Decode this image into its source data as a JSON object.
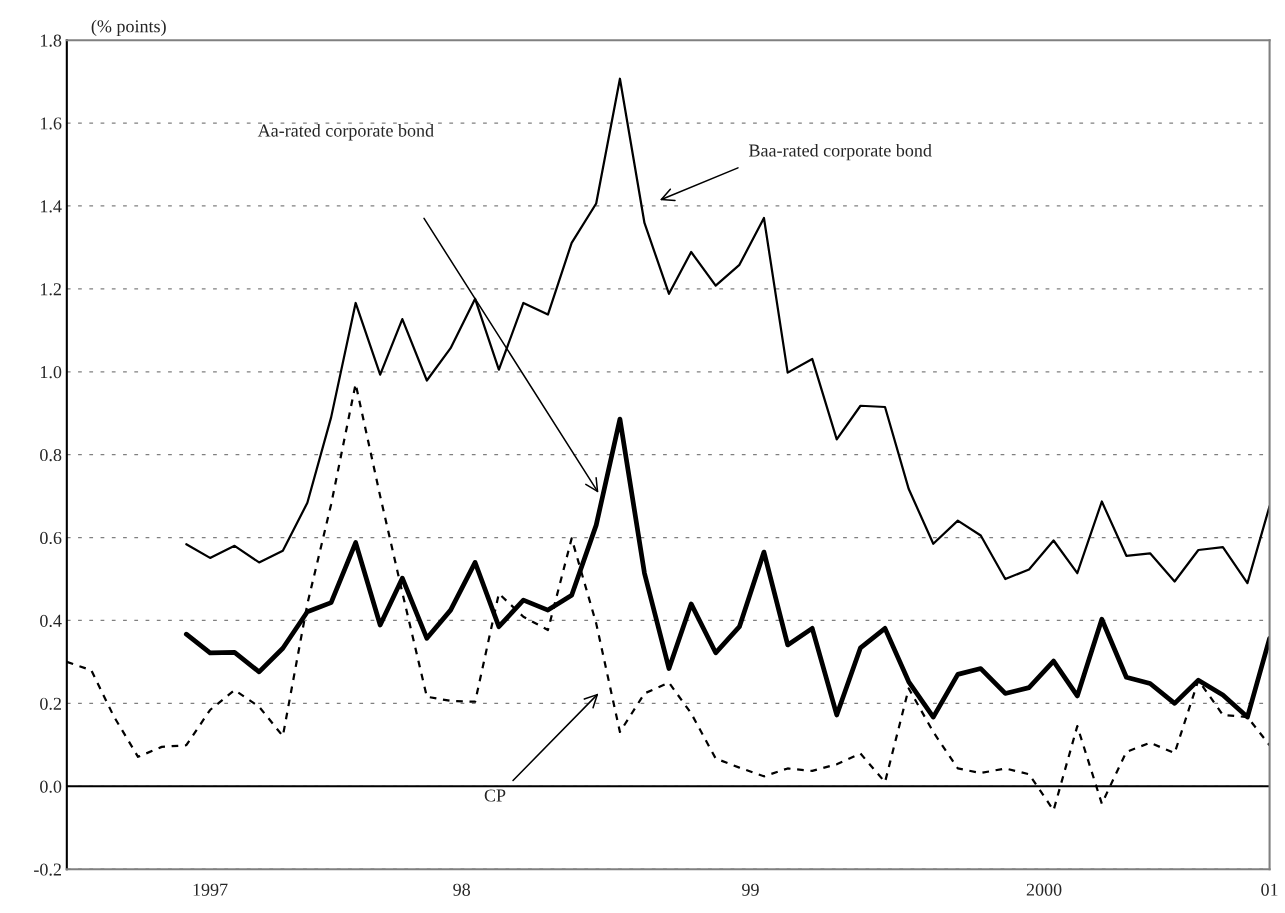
{
  "chart_data": {
    "type": "line",
    "ylabel": "(% points)",
    "x": [
      "1997-01",
      "1997-02",
      "1997-03",
      "1997-04",
      "1997-05",
      "1997-06",
      "1997-07",
      "1997-08",
      "1997-09",
      "1997-10",
      "1997-11",
      "1997-12",
      "1998-01",
      "1998-02",
      "1998-03",
      "1998-04",
      "1998-05",
      "1998-06",
      "1998-07",
      "1998-08",
      "1998-09",
      "1998-10",
      "1998-11",
      "1998-12",
      "1999-01",
      "1999-02",
      "1999-03",
      "1999-04",
      "1999-05",
      "1999-06",
      "1999-07",
      "1999-08",
      "1999-09",
      "1999-10",
      "1999-11",
      "1999-12",
      "2000-01",
      "2000-02",
      "2000-03",
      "2000-04",
      "2000-05",
      "2000-06",
      "2000-07",
      "2000-08",
      "2000-09",
      "2000-10",
      "2000-11",
      "2000-12",
      "2001-01",
      "2001-02",
      "2001-03"
    ],
    "series": [
      {
        "color": "#000000",
        "line_style": "solid",
        "values": [
          null,
          null,
          null,
          null,
          null,
          0.584,
          0.551,
          0.58,
          0.54,
          0.568,
          0.684,
          0.89,
          1.166,
          0.993,
          1.127,
          0.979,
          1.057,
          1.176,
          1.005,
          1.166,
          1.138,
          1.311,
          1.406,
          1.707,
          1.359,
          1.188,
          1.289,
          1.208,
          1.258,
          1.371,
          0.998,
          1.031,
          0.837,
          0.918,
          0.915,
          0.717,
          0.585,
          0.641,
          0.605,
          0.5,
          0.523,
          0.593,
          0.514,
          0.687,
          0.556,
          0.562,
          0.494,
          0.57,
          0.577,
          0.49,
          0.676
        ]
      },
      {
        "color": "#000000",
        "line_style": "solid",
        "values": [
          null,
          null,
          null,
          null,
          null,
          0.367,
          0.322,
          0.323,
          0.276,
          0.333,
          0.421,
          0.443,
          0.588,
          0.389,
          0.502,
          0.357,
          0.425,
          0.54,
          0.385,
          0.449,
          0.425,
          0.461,
          0.63,
          0.886,
          0.514,
          0.284,
          0.44,
          0.322,
          0.385,
          0.565,
          0.341,
          0.381,
          0.172,
          0.334,
          0.381,
          0.252,
          0.167,
          0.27,
          0.284,
          0.224,
          0.238,
          0.302,
          0.218,
          0.403,
          0.263,
          0.248,
          0.2,
          0.256,
          0.22,
          0.167,
          0.357
        ]
      },
      {
        "color": "#000000",
        "line_style": "dashed",
        "values": [
          0.3,
          0.28,
          0.17,
          0.071,
          0.095,
          0.099,
          0.184,
          0.232,
          0.192,
          0.121,
          0.44,
          0.68,
          0.971,
          0.7,
          0.467,
          0.216,
          0.206,
          0.204,
          0.465,
          0.409,
          0.377,
          0.598,
          0.393,
          0.131,
          0.224,
          0.25,
          0.176,
          0.067,
          0.045,
          0.024,
          0.043,
          0.037,
          0.053,
          0.079,
          0.01,
          0.236,
          0.131,
          0.043,
          0.032,
          0.043,
          0.029,
          -0.058,
          0.145,
          -0.042,
          0.083,
          0.105,
          0.08,
          0.256,
          0.172,
          0.167,
          0.099
        ]
      }
    ],
    "xlim": [
      "1997-01",
      "2001-03"
    ],
    "xticks": [
      {
        "value": "1997-07",
        "label": "1997"
      },
      {
        "value": "1998-05-15",
        "label": "98"
      },
      {
        "value": "1999-05-15",
        "label": "99"
      },
      {
        "value": "2000-05-20",
        "label": "2000"
      },
      {
        "value": "2001-03",
        "label": "01"
      }
    ],
    "ylim": [
      -0.2,
      1.8
    ],
    "yticks": [
      {
        "value": -0.2,
        "label": "-0.2"
      },
      {
        "value": 0,
        "label": "0.0"
      },
      {
        "value": 0.2,
        "label": "0.2"
      },
      {
        "value": 0.4,
        "label": "0.4"
      },
      {
        "value": 0.6,
        "label": "0.6"
      },
      {
        "value": 0.8,
        "label": "0.8"
      },
      {
        "value": 1.0,
        "label": "1.0"
      },
      {
        "value": 1.2,
        "label": "1.2"
      },
      {
        "value": 1.4,
        "label": "1.4"
      },
      {
        "value": 1.6,
        "label": "1.6"
      },
      {
        "value": 1.8,
        "label": "1.8"
      }
    ],
    "grid": "y",
    "legend": false,
    "marker": "none",
    "ref_lines": [
      {
        "axis": "y",
        "value": 0,
        "color": "#000000",
        "line_style": "solid"
      }
    ],
    "annotations": [
      "Aa-rated corporate bond",
      "Baa-rated corporate bond",
      "CP"
    ]
  }
}
